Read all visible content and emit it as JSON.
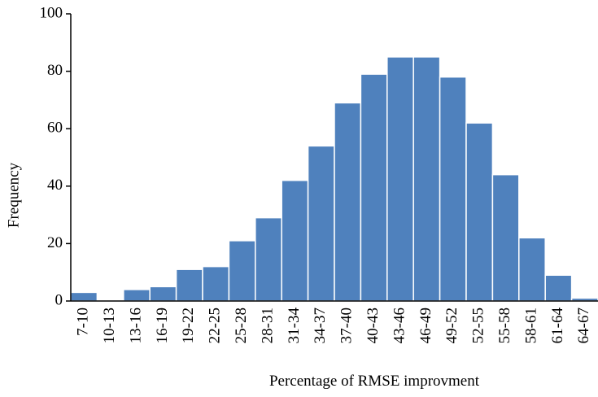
{
  "chart_data": {
    "type": "bar",
    "x_label": "Percentage of RMSE improvment",
    "y_label": "Frequency",
    "categories": [
      "7-10",
      "10-13",
      "13-16",
      "16-19",
      "19-22",
      "22-25",
      "25-28",
      "28-31",
      "31-34",
      "34-37",
      "37-40",
      "40-43",
      "43-46",
      "46-49",
      "49-52",
      "52-55",
      "55-58",
      "58-61",
      "61-64",
      "64-67"
    ],
    "values": [
      3,
      0,
      4,
      5,
      11,
      12,
      21,
      29,
      42,
      54,
      69,
      79,
      85,
      85,
      78,
      62,
      44,
      22,
      9,
      1
    ],
    "color": "#4f81bd",
    "ylim": [
      0,
      100
    ],
    "yticks": [
      0,
      20,
      40,
      60,
      80,
      100
    ],
    "grid": false
  }
}
